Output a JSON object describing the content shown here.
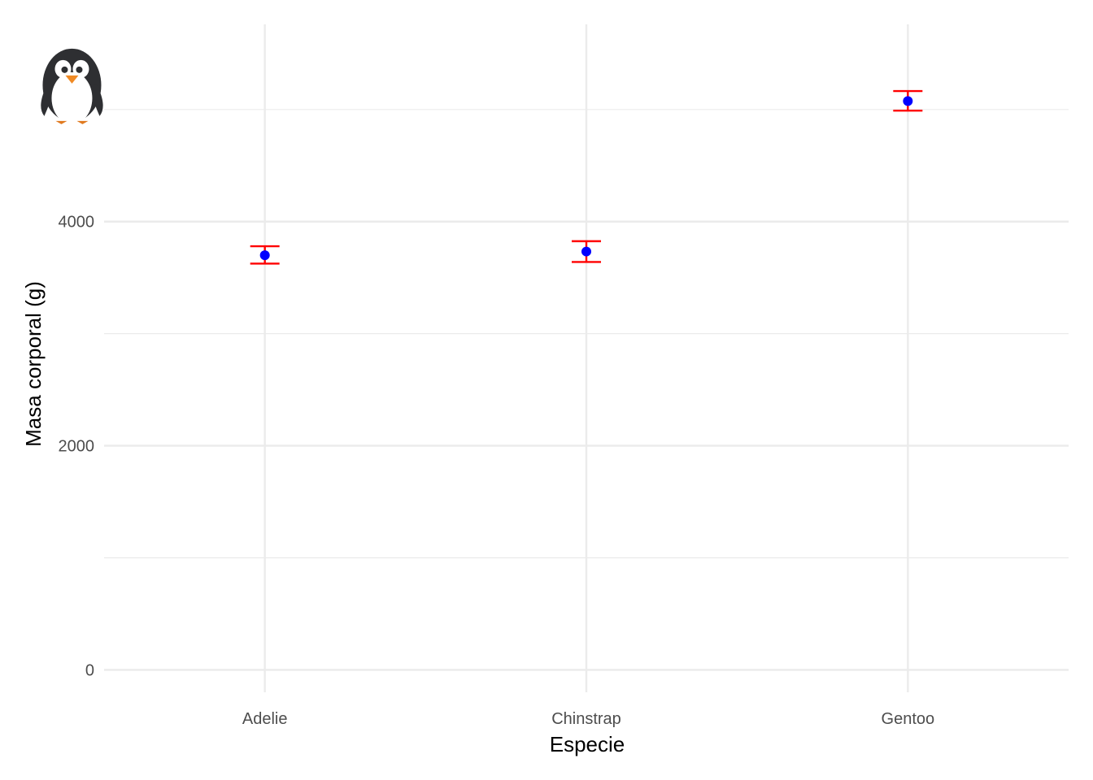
{
  "chart_data": {
    "type": "scatter",
    "title": "",
    "xlabel": "Especie",
    "ylabel": "Masa corporal (g)",
    "categories": [
      "Adelie",
      "Chinstrap",
      "Gentoo"
    ],
    "series": [
      {
        "mean": [
          3700,
          3733,
          5076
        ],
        "ci_low": [
          3625,
          3640,
          4990
        ],
        "ci_high": [
          3780,
          3825,
          5165
        ]
      }
    ],
    "yticks": [
      0,
      2000,
      4000
    ],
    "ylim": [
      -200,
      5760
    ],
    "grid": true,
    "annotation_icon": "penguin-icon",
    "annotation_position": {
      "category": "Adelie",
      "offset": -0.6,
      "y": 5000
    },
    "colors": {
      "point": "#0000ff",
      "errorbar": "#ff0000",
      "grid": "#ebebeb"
    }
  }
}
